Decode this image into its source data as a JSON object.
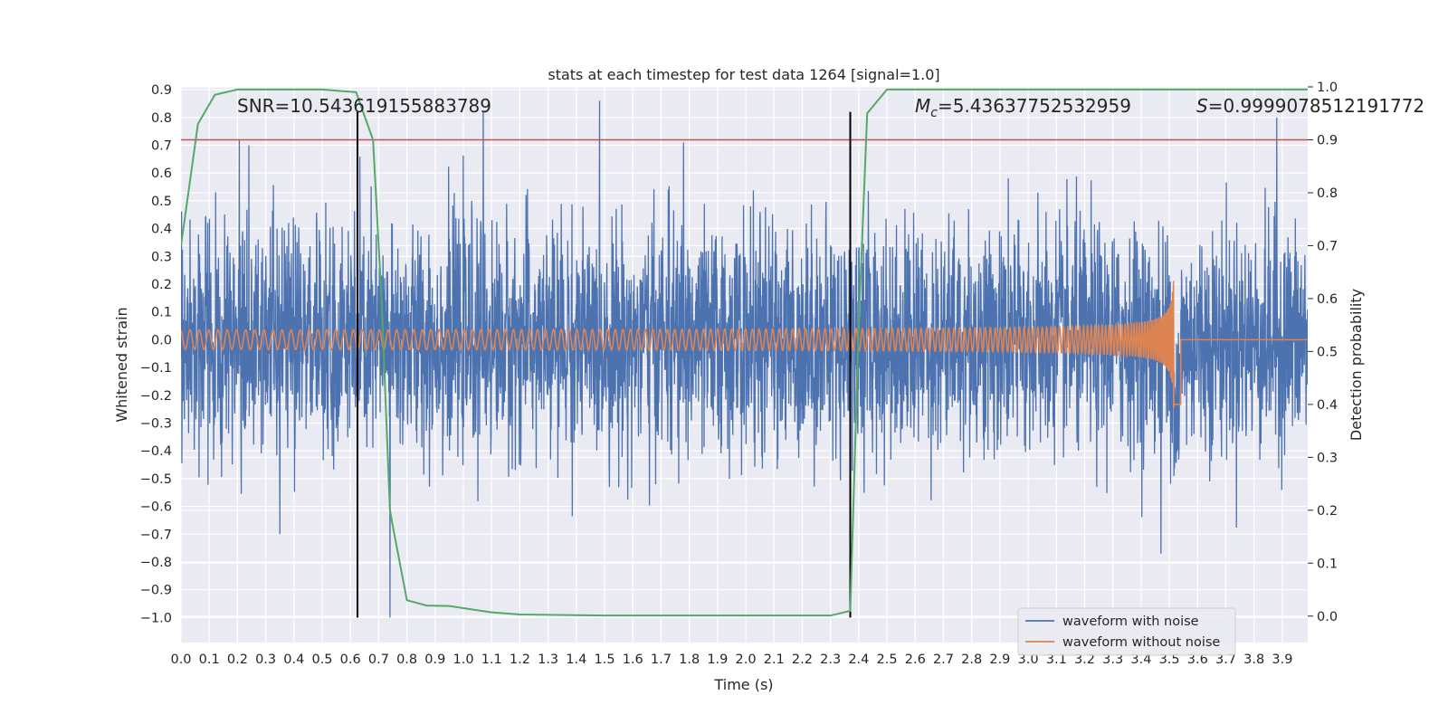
{
  "chart_data": {
    "type": "line",
    "title": "stats at each timestep for test data 1264 [signal=1.0]",
    "xlabel": "Time (s)",
    "ylabel": "Whitened strain",
    "y2label": "Detection probability",
    "xlim": [
      0.0,
      3.99
    ],
    "ylim": [
      -1.09,
      0.91
    ],
    "y2lim": [
      -0.05,
      1.0
    ],
    "xticks": [
      "0.0",
      "0.1",
      "0.2",
      "0.3",
      "0.4",
      "0.5",
      "0.6",
      "0.7",
      "0.8",
      "0.9",
      "1.0",
      "1.1",
      "1.2",
      "1.3",
      "1.4",
      "1.5",
      "1.6",
      "1.7",
      "1.8",
      "1.9",
      "2.0",
      "2.1",
      "2.2",
      "2.3",
      "2.4",
      "2.5",
      "2.6",
      "2.7",
      "2.8",
      "2.9",
      "3.0",
      "3.1",
      "3.2",
      "3.3",
      "3.4",
      "3.5",
      "3.6",
      "3.7",
      "3.8",
      "3.9"
    ],
    "yticks": [
      "0.9",
      "0.8",
      "0.7",
      "0.6",
      "0.5",
      "0.4",
      "0.3",
      "0.2",
      "0.1",
      "0.0",
      "−0.1",
      "−0.2",
      "−0.3",
      "−0.4",
      "−0.5",
      "−0.6",
      "−0.7",
      "−0.8",
      "−0.9",
      "−1.0"
    ],
    "y2ticks": [
      "1.0",
      "0.9",
      "0.8",
      "0.7",
      "0.6",
      "0.5",
      "0.4",
      "0.3",
      "0.2",
      "0.1",
      "0.0"
    ],
    "grid": true,
    "legend": {
      "placement": "lower-right",
      "entries": [
        "waveform with noise",
        "waveform without noise"
      ]
    },
    "annotations": {
      "snr": "SNR=10.543619155883789",
      "mc_symbol": "M",
      "mc_sub": "c",
      "mc_value": "=5.43637752532959",
      "s_symbol": "S",
      "s_value": "=0.9999078512191772"
    },
    "series": [
      {
        "name": "waveform with noise",
        "color": "#4c72b0",
        "kind": "noise",
        "approx_std": 0.2,
        "sample_peaks": [
          [
            0.24,
            0.7
          ],
          [
            1.07,
            0.82
          ],
          [
            1.78,
            0.71
          ],
          [
            3.88,
            0.8
          ],
          [
            0.74,
            -1.0
          ],
          [
            0.35,
            -0.7
          ],
          [
            3.47,
            -0.77
          ]
        ]
      },
      {
        "name": "waveform without noise",
        "color": "#dd8452",
        "kind": "chirp",
        "amplitude_start": 0.03,
        "amplitude_peak": 0.25,
        "merger_time": 3.52,
        "frequency_start_hz": 30
      },
      {
        "name": "detection probability",
        "axis": "right",
        "color": "#55a868",
        "x": [
          0.0,
          0.06,
          0.12,
          0.2,
          0.3,
          0.5,
          0.62,
          0.68,
          0.71,
          0.74,
          0.75,
          0.8,
          0.87,
          0.95,
          1.0,
          1.1,
          1.2,
          1.5,
          2.0,
          2.3,
          2.37,
          2.4,
          2.43,
          2.5,
          3.0,
          3.99
        ],
        "y": [
          0.7,
          0.93,
          0.985,
          0.995,
          0.995,
          0.995,
          0.99,
          0.9,
          0.6,
          0.2,
          0.17,
          0.03,
          0.02,
          0.019,
          0.015,
          0.007,
          0.003,
          0.001,
          0.001,
          0.001,
          0.01,
          0.55,
          0.95,
          0.995,
          0.995,
          0.995
        ]
      }
    ],
    "threshold": {
      "axis": "right",
      "value": 0.9,
      "color": "#c44e52"
    },
    "vlines": [
      {
        "x": 0.625,
        "ymin": -1.0,
        "ymax": 0.82,
        "color": "#000000"
      },
      {
        "x": 2.37,
        "ymin": -1.0,
        "ymax": 0.82,
        "color": "#000000"
      }
    ],
    "colors": {
      "plot_bg": "#eaeaf2",
      "grid": "#ffffff"
    }
  }
}
